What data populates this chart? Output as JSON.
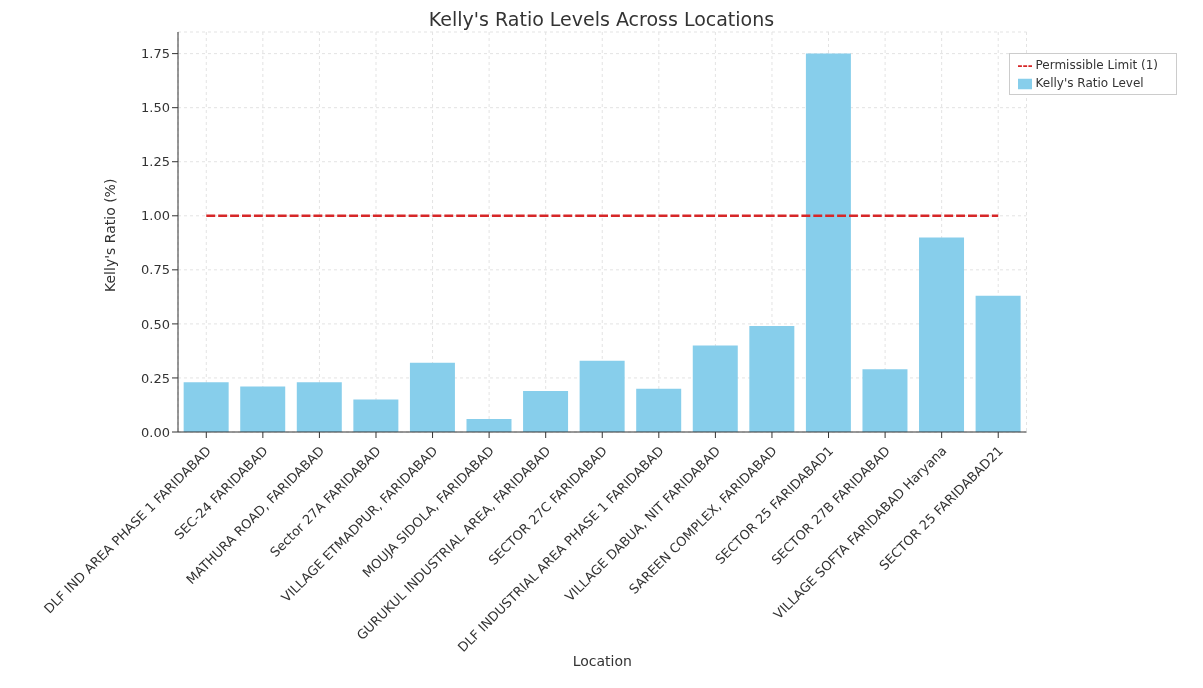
{
  "chart_data": {
    "type": "bar",
    "title": "Kelly's Ratio Levels Across Locations",
    "xlabel": "Location",
    "ylabel": "Kelly's Ratio (%)",
    "categories": [
      "DLF IND AREA PHASE 1 FARIDABAD",
      "SEC-24 FARIDABAD",
      "MATHURA ROAD, FARIDABAD",
      "Sector 27A FARIDABAD",
      "VILLAGE ETMADPUR, FARIDABAD",
      "MOUJA SIDOLA, FARIDABAD",
      "GURUKUL INDUSTRIAL AREA, FARIDABAD",
      "SECTOR 27C FARIDABAD",
      "DLF INDUSTRIAL AREA PHASE 1 FARIDABAD",
      "VILLAGE DABUA, NIT FARIDABAD",
      "SAREEN COMPLEX, FARIDABAD",
      "SECTOR 25 FARIDABAD1",
      "SECTOR 27B FARIDABAD",
      "VILLAGE SOFTA FARIDABAD Haryana",
      "SECTOR 25 FARIDABAD21"
    ],
    "series": [
      {
        "name": "Permissible Limit (1)",
        "type": "line",
        "color": "#d62728",
        "line_style": "dashed",
        "marker": "none",
        "values": [
          1,
          1,
          1,
          1,
          1,
          1,
          1,
          1,
          1,
          1,
          1,
          1,
          1,
          1,
          1
        ]
      },
      {
        "name": "Kelly's Ratio Level",
        "color": "#87ceeb",
        "values": [
          0.23,
          0.21,
          0.23,
          0.15,
          0.32,
          0.06,
          0.19,
          0.33,
          0.2,
          0.4,
          0.49,
          1.75,
          0.29,
          0.9,
          0.63
        ]
      }
    ],
    "ylim": [
      0,
      1.85
    ],
    "yticks": [
      {
        "value": 0,
        "label": "0.00"
      },
      {
        "value": 0.25,
        "label": "0.25"
      },
      {
        "value": 0.5,
        "label": "0.50"
      },
      {
        "value": 0.75,
        "label": "0.75"
      },
      {
        "value": 1,
        "label": "1.00"
      },
      {
        "value": 1.25,
        "label": "1.25"
      },
      {
        "value": 1.5,
        "label": "1.50"
      },
      {
        "value": 1.75,
        "label": "1.75"
      }
    ],
    "grid": true,
    "legend": "top right"
  }
}
